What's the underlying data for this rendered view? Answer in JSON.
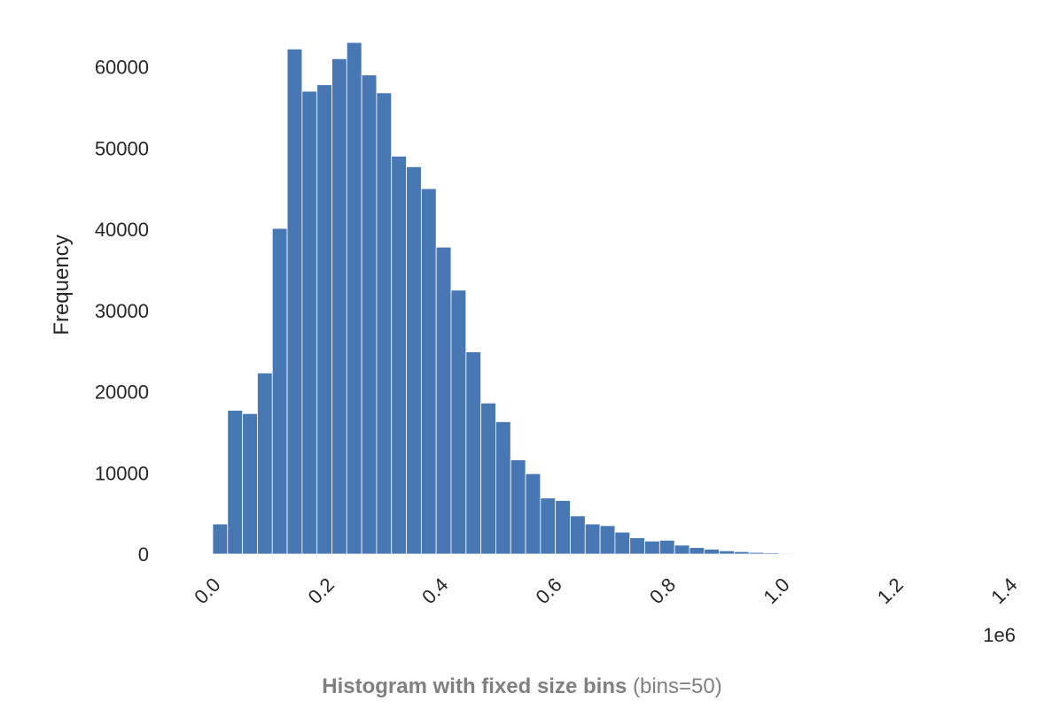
{
  "caption": {
    "title_bold": "Histogram with fixed size bins",
    "title_rest": "(bins=50)"
  },
  "chart_data": {
    "type": "bar",
    "title": "Histogram with fixed size bins (bins=50)",
    "xlabel": "",
    "ylabel": "Frequency",
    "x_offset_label": "1e6",
    "bar_color": "#4878b4",
    "grid": false,
    "xlim": [
      0,
      1.4
    ],
    "ylim": [
      0,
      63000
    ],
    "x_ticks": [
      0.0,
      0.2,
      0.4,
      0.6,
      0.8,
      1.0,
      1.2,
      1.4
    ],
    "x_tick_labels": [
      "0.0",
      "0.2",
      "0.4",
      "0.6",
      "0.8",
      "1.0",
      "1.2",
      "1.4"
    ],
    "y_ticks": [
      0,
      10000,
      20000,
      30000,
      40000,
      50000,
      60000
    ],
    "y_tick_labels": [
      "0",
      "10000",
      "20000",
      "30000",
      "40000",
      "50000",
      "60000"
    ],
    "bin_start": 0.0,
    "bin_width": 0.02618,
    "values": [
      3700,
      17700,
      17300,
      22300,
      40100,
      62200,
      57000,
      57800,
      61000,
      63000,
      59000,
      56800,
      49000,
      47700,
      45000,
      37800,
      32500,
      24900,
      18600,
      16300,
      11600,
      9900,
      6900,
      6600,
      4700,
      3700,
      3500,
      2700,
      2000,
      1600,
      1700,
      1100,
      800,
      600,
      400,
      300,
      200,
      150,
      100,
      70,
      50,
      40,
      30,
      20,
      20,
      10,
      10,
      10,
      10,
      10
    ]
  }
}
